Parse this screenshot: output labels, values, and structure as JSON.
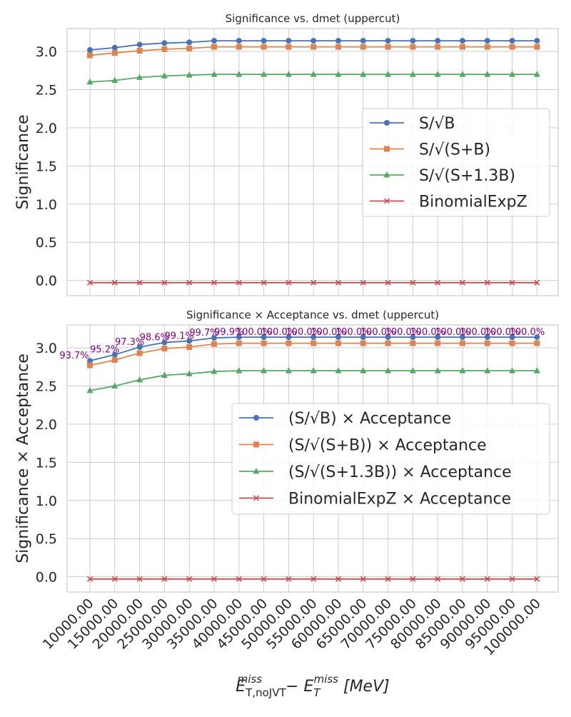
{
  "chart_data": [
    {
      "type": "line",
      "title": "Significance vs. dmet (uppercut)",
      "ylabel": "Significance",
      "xlabel": "",
      "ylim": [
        -0.2,
        3.3
      ],
      "yticks": [
        "0.0",
        "0.5",
        "1.0",
        "1.5",
        "2.0",
        "2.5",
        "3.0"
      ],
      "grid": true,
      "legend_position": "center-right",
      "categories": [
        "10000.00",
        "15000.00",
        "20000.00",
        "25000.00",
        "30000.00",
        "35000.00",
        "40000.00",
        "45000.00",
        "50000.00",
        "55000.00",
        "60000.00",
        "65000.00",
        "70000.00",
        "75000.00",
        "80000.00",
        "85000.00",
        "90000.00",
        "95000.00",
        "100000.00"
      ],
      "series": [
        {
          "name": "S/√B",
          "color": "#4c72b0",
          "marker": "circle",
          "values": [
            3.02,
            3.05,
            3.09,
            3.11,
            3.12,
            3.14,
            3.14,
            3.14,
            3.14,
            3.14,
            3.14,
            3.14,
            3.14,
            3.14,
            3.14,
            3.14,
            3.14,
            3.14,
            3.14
          ]
        },
        {
          "name": "S/√(S+B)",
          "color": "#dd8452",
          "marker": "square",
          "values": [
            2.95,
            2.98,
            3.01,
            3.03,
            3.04,
            3.06,
            3.06,
            3.06,
            3.06,
            3.06,
            3.06,
            3.06,
            3.06,
            3.06,
            3.06,
            3.06,
            3.06,
            3.06,
            3.06
          ]
        },
        {
          "name": "S/√(S+1.3B)",
          "color": "#55a868",
          "marker": "triangle",
          "values": [
            2.6,
            2.62,
            2.66,
            2.68,
            2.69,
            2.7,
            2.7,
            2.7,
            2.7,
            2.7,
            2.7,
            2.7,
            2.7,
            2.7,
            2.7,
            2.7,
            2.7,
            2.7,
            2.7
          ]
        },
        {
          "name": "BinomialExpZ",
          "color": "#c44e52",
          "marker": "x",
          "values": [
            -0.03,
            -0.03,
            -0.03,
            -0.03,
            -0.03,
            -0.03,
            -0.03,
            -0.03,
            -0.03,
            -0.03,
            -0.03,
            -0.03,
            -0.03,
            -0.03,
            -0.03,
            -0.03,
            -0.03,
            -0.03,
            -0.03
          ]
        }
      ]
    },
    {
      "type": "line",
      "title": "Significance × Acceptance vs. dmet (uppercut)",
      "ylabel": "Significance × Acceptance",
      "xlabel": "E_T,noJVT^miss − E_T^miss [MeV]",
      "ylim": [
        -0.2,
        3.3
      ],
      "yticks": [
        "0.0",
        "0.5",
        "1.0",
        "1.5",
        "2.0",
        "2.5",
        "3.0"
      ],
      "grid": true,
      "legend_position": "center-right",
      "categories": [
        "10000.00",
        "15000.00",
        "20000.00",
        "25000.00",
        "30000.00",
        "35000.00",
        "40000.00",
        "45000.00",
        "50000.00",
        "55000.00",
        "60000.00",
        "65000.00",
        "70000.00",
        "75000.00",
        "80000.00",
        "85000.00",
        "90000.00",
        "95000.00",
        "100000.00"
      ],
      "annotations": [
        "93.7%",
        "95.2%",
        "97.3%",
        "98.6%",
        "99.1%",
        "99.7%",
        "99.9%",
        "100.0%",
        "100.0%",
        "100.0%",
        "100.0%",
        "100.0%",
        "100.0%",
        "100.0%",
        "100.0%",
        "100.0%",
        "100.0%",
        "100.0%",
        "100.0%"
      ],
      "series": [
        {
          "name": "(S/√B) × Acceptance",
          "color": "#4c72b0",
          "marker": "circle",
          "values": [
            2.83,
            2.91,
            3.01,
            3.07,
            3.09,
            3.13,
            3.14,
            3.14,
            3.14,
            3.14,
            3.14,
            3.14,
            3.14,
            3.14,
            3.14,
            3.14,
            3.14,
            3.14,
            3.14
          ]
        },
        {
          "name": "(S/√(S+B)) × Acceptance",
          "color": "#dd8452",
          "marker": "square",
          "values": [
            2.77,
            2.84,
            2.93,
            2.99,
            3.01,
            3.05,
            3.06,
            3.06,
            3.06,
            3.06,
            3.06,
            3.06,
            3.06,
            3.06,
            3.06,
            3.06,
            3.06,
            3.06,
            3.06
          ]
        },
        {
          "name": "(S/√(S+1.3B)) × Acceptance",
          "color": "#55a868",
          "marker": "triangle",
          "values": [
            2.44,
            2.5,
            2.58,
            2.64,
            2.66,
            2.69,
            2.7,
            2.7,
            2.7,
            2.7,
            2.7,
            2.7,
            2.7,
            2.7,
            2.7,
            2.7,
            2.7,
            2.7,
            2.7
          ]
        },
        {
          "name": "BinomialExpZ × Acceptance",
          "color": "#c44e52",
          "marker": "x",
          "values": [
            -0.03,
            -0.03,
            -0.03,
            -0.03,
            -0.03,
            -0.03,
            -0.03,
            -0.03,
            -0.03,
            -0.03,
            -0.03,
            -0.03,
            -0.03,
            -0.03,
            -0.03,
            -0.03,
            -0.03,
            -0.03,
            -0.03
          ]
        }
      ]
    }
  ],
  "xlabel_parts": {
    "e1": "E",
    "sub1": "T,",
    "sub1b": "noJVT",
    "sup1": "miss",
    "minus": " − ",
    "e2": "E",
    "sub2": "T",
    "sup2": "miss",
    "unit": " [MeV]"
  }
}
